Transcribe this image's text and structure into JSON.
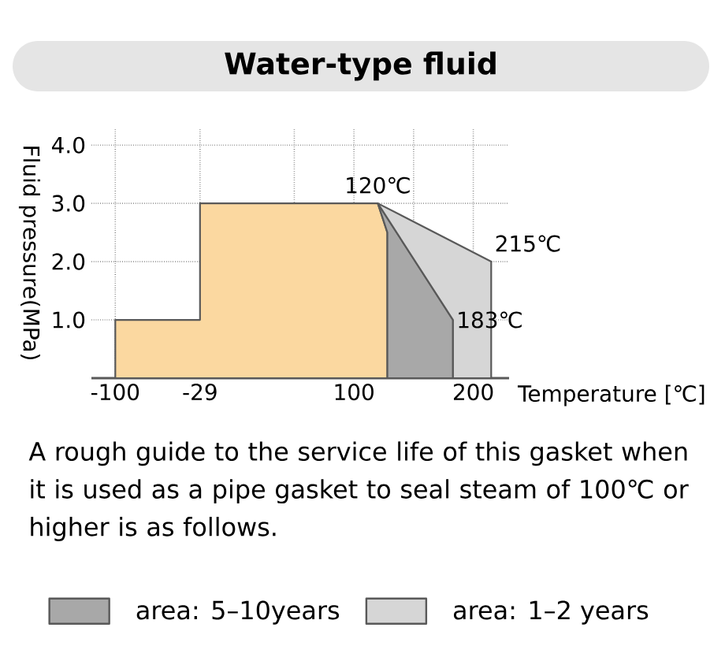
{
  "chart_data": {
    "type": "area",
    "title": "Water-type fluid",
    "ylabel": "Fluid pressure(MPa)",
    "xlabel": "Temperature [℃]",
    "xlim": [
      -120,
      230
    ],
    "ylim": [
      0,
      4.3
    ],
    "xticks": [
      -100,
      -29,
      {
        "value": 50,
        "label": null
      },
      100,
      {
        "value": 150,
        "label": null
      },
      200
    ],
    "yticks": [
      {
        "value": 1,
        "label": "1.0"
      },
      {
        "value": 2,
        "label": "2.0"
      },
      {
        "value": 3,
        "label": "3.0"
      },
      {
        "value": 4,
        "label": "4.0"
      }
    ],
    "grid": true,
    "legend": "bottom",
    "series": [
      {
        "color": "#fbd8a0",
        "x": [
          -100,
          -100,
          -29,
          -29,
          120,
          128,
          128
        ],
        "values": [
          0,
          1,
          1,
          3,
          3,
          2.5,
          0
        ]
      },
      {
        "name": "area: 5–10years",
        "color": "#a8a8a8",
        "x": [
          128,
          128,
          120,
          183,
          183
        ],
        "values": [
          0,
          2.5,
          3,
          1,
          0
        ]
      },
      {
        "name": "area: 1–2 years",
        "color": "#d6d6d6",
        "x": [
          183,
          183,
          120,
          215,
          215
        ],
        "values": [
          0,
          1,
          3,
          2,
          0
        ]
      }
    ],
    "annotations": [
      "A rough guide to the service life of this gasket when it is used as a pipe gasket to seal steam of 100℃ or higher is as follows.",
      {
        "text": "120℃",
        "x": 120,
        "y": 3
      },
      {
        "text": "215℃",
        "x": 215,
        "y": 2
      },
      {
        "text": "183℃",
        "x": 183,
        "y": 1
      }
    ]
  }
}
